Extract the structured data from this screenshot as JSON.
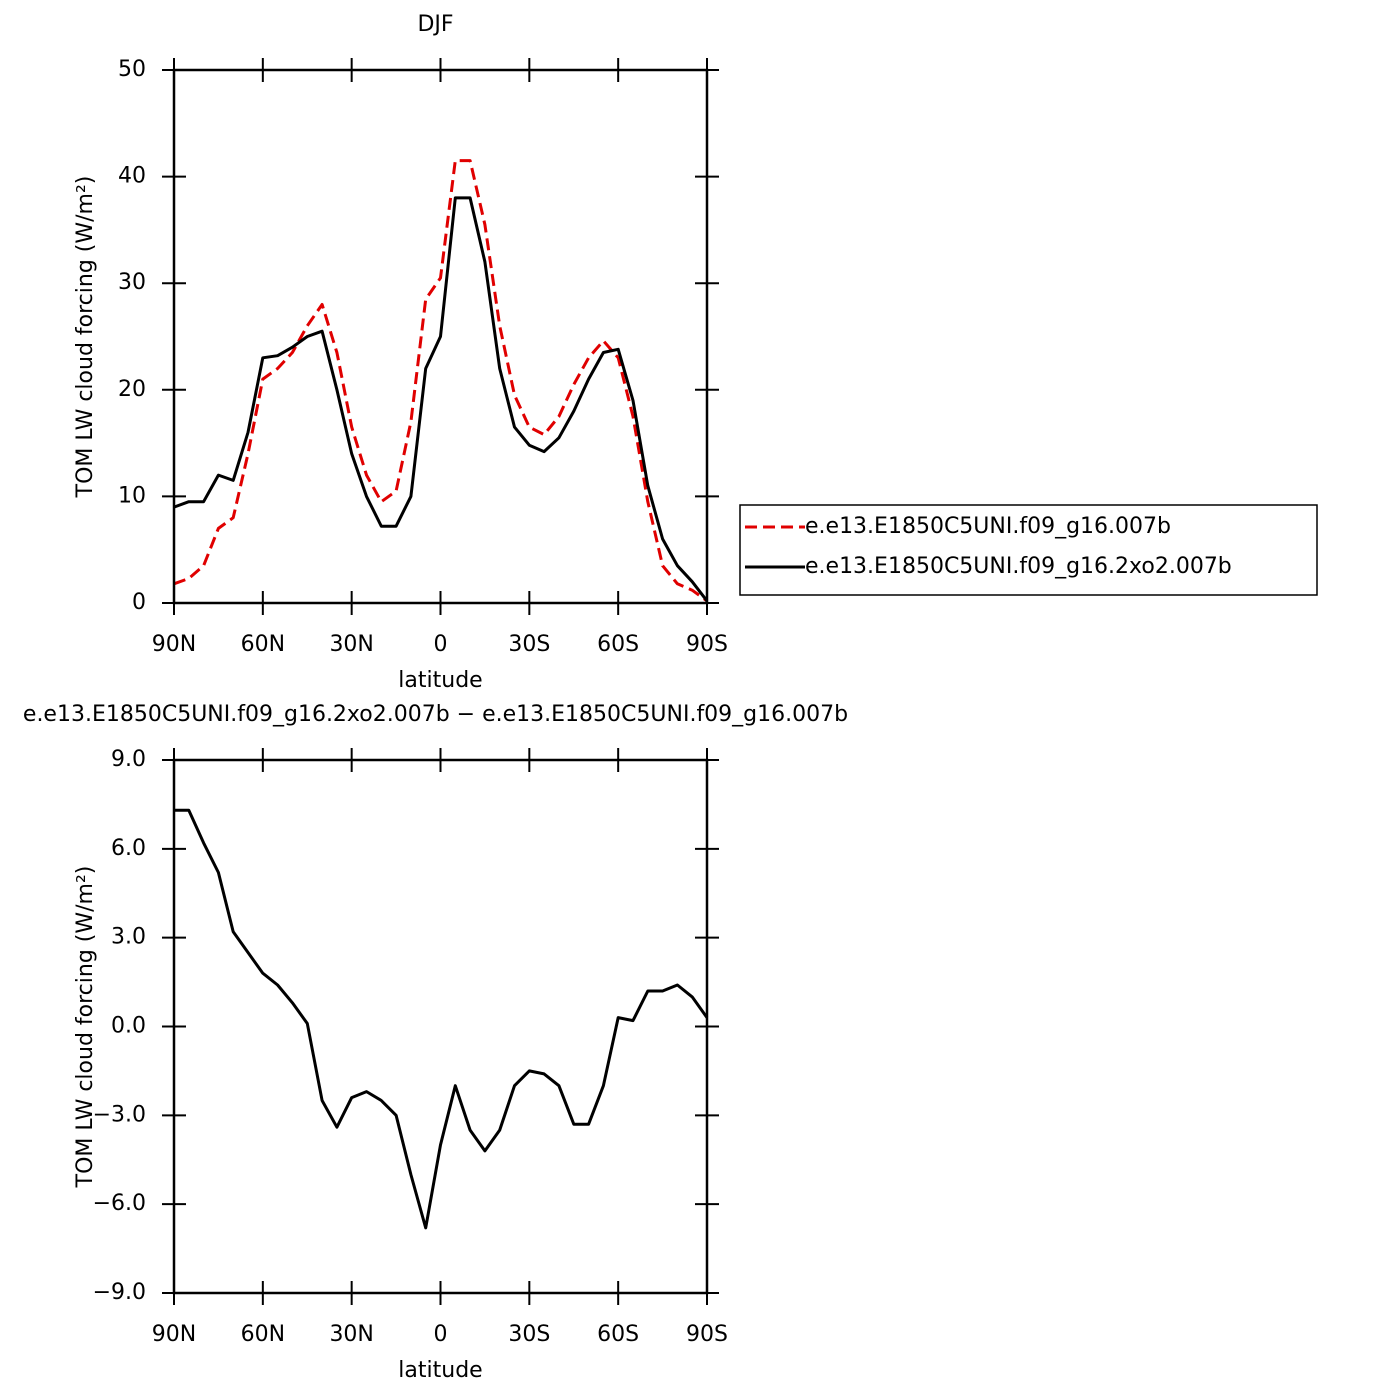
{
  "chart_data": [
    {
      "type": "line",
      "title": "DJF",
      "xlabel": "latitude",
      "ylabel": "TOM LW cloud forcing (W/m²)",
      "x": [
        90,
        85,
        80,
        75,
        70,
        65,
        60,
        55,
        50,
        45,
        40,
        35,
        30,
        25,
        20,
        15,
        10,
        5,
        0,
        -5,
        -10,
        -15,
        -20,
        -25,
        -30,
        -35,
        -40,
        -45,
        -50,
        -55,
        -60,
        -65,
        -70,
        -75,
        -80,
        -85,
        -90
      ],
      "series": [
        {
          "name": "e.e13.E1850C5UNI.f09_g16.007b",
          "color": "#e00000",
          "dashed": true,
          "values": [
            1.8,
            2.3,
            3.5,
            7,
            8,
            14,
            21,
            22,
            23.5,
            26,
            28,
            23.5,
            16.5,
            12,
            9.5,
            10.5,
            17,
            28.5,
            30.5,
            41.5,
            41.5,
            35.5,
            26,
            19.5,
            16.5,
            15.8,
            17.5,
            20.5,
            23,
            24.6,
            23,
            17.5,
            9.5,
            3.5,
            1.8,
            1.2,
            0.2
          ]
        },
        {
          "name": "e.e13.E1850C5UNI.f09_g16.2xo2.007b",
          "color": "#000000",
          "dashed": false,
          "values": [
            9,
            9.5,
            9.5,
            12,
            11.5,
            16,
            23,
            23.2,
            24,
            25,
            25.5,
            20,
            14,
            10,
            7.2,
            7.2,
            10,
            22,
            25,
            38,
            38,
            32,
            22,
            16.5,
            14.8,
            14.2,
            15.5,
            18,
            21,
            23.5,
            23.8,
            19,
            11,
            6,
            3.5,
            2,
            0.2
          ]
        }
      ],
      "xlim": [
        90,
        -90
      ],
      "xticks": [
        {
          "value": 90,
          "label": "90N"
        },
        {
          "value": 60,
          "label": "60N"
        },
        {
          "value": 30,
          "label": "30N"
        },
        0,
        {
          "value": -30,
          "label": "30S"
        },
        {
          "value": -60,
          "label": "60S"
        },
        {
          "value": -90,
          "label": "90S"
        }
      ],
      "ylim": [
        0,
        50
      ],
      "yticks": [
        0,
        10,
        20,
        30,
        40,
        50
      ],
      "legend": "right"
    },
    {
      "type": "line",
      "title": "e.e13.E1850C5UNI.f09_g16.2xo2.007b − e.e13.E1850C5UNI.f09_g16.007b",
      "xlabel": "latitude",
      "ylabel": "TOM LW cloud forcing (W/m²)",
      "x": [
        90,
        85,
        80,
        75,
        70,
        65,
        60,
        55,
        50,
        45,
        40,
        35,
        30,
        25,
        20,
        15,
        10,
        5,
        0,
        -5,
        -10,
        -15,
        -20,
        -25,
        -30,
        -35,
        -40,
        -45,
        -50,
        -55,
        -60,
        -65,
        -70,
        -75,
        -80,
        -85,
        -90
      ],
      "series": [
        {
          "name": null,
          "color": "#000000",
          "dashed": false,
          "values": [
            7.3,
            7.3,
            6.2,
            5.2,
            3.2,
            2.5,
            1.8,
            1.4,
            0.8,
            0.1,
            -2.5,
            -3.4,
            -2.4,
            -2.2,
            -2.5,
            -3.0,
            -5.0,
            -6.8,
            -4.0,
            -2.0,
            -3.5,
            -4.2,
            -3.5,
            -2.0,
            -1.5,
            -1.6,
            -2.0,
            -3.3,
            -3.3,
            -2.0,
            0.3,
            0.2,
            1.2,
            1.2,
            1.4,
            1.0,
            0.3
          ]
        }
      ],
      "xlim": [
        90,
        -90
      ],
      "xticks": [
        {
          "value": 90,
          "label": "90N"
        },
        {
          "value": 60,
          "label": "60N"
        },
        {
          "value": 30,
          "label": "30N"
        },
        0,
        {
          "value": -30,
          "label": "30S"
        },
        {
          "value": -60,
          "label": "60S"
        },
        {
          "value": -90,
          "label": "90S"
        }
      ],
      "ylim": [
        -9,
        9
      ],
      "yticks": [
        {
          "value": -9,
          "label": "−9.0"
        },
        {
          "value": -6,
          "label": "−6.0"
        },
        {
          "value": -3,
          "label": "−3.0"
        },
        {
          "value": 0,
          "label": "0.0"
        },
        {
          "value": 3,
          "label": "3.0"
        },
        {
          "value": 6,
          "label": "6.0"
        },
        {
          "value": 9,
          "label": "9.0"
        }
      ]
    }
  ]
}
